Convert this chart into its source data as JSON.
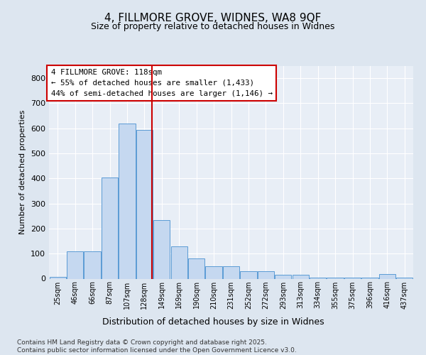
{
  "title_line1": "4, FILLMORE GROVE, WIDNES, WA8 9QF",
  "title_line2": "Size of property relative to detached houses in Widnes",
  "xlabel": "Distribution of detached houses by size in Widnes",
  "ylabel": "Number of detached properties",
  "categories": [
    "25sqm",
    "46sqm",
    "66sqm",
    "87sqm",
    "107sqm",
    "128sqm",
    "149sqm",
    "169sqm",
    "190sqm",
    "210sqm",
    "231sqm",
    "252sqm",
    "272sqm",
    "293sqm",
    "313sqm",
    "334sqm",
    "355sqm",
    "375sqm",
    "396sqm",
    "416sqm",
    "437sqm"
  ],
  "values": [
    8,
    108,
    108,
    403,
    620,
    595,
    233,
    130,
    80,
    50,
    50,
    30,
    30,
    15,
    15,
    5,
    5,
    3,
    3,
    18,
    3
  ],
  "bar_color": "#c5d8f0",
  "bar_edge_color": "#5b9bd5",
  "vline_x": 5.45,
  "vline_color": "#cc0000",
  "annotation_text": "4 FILLMORE GROVE: 118sqm\n← 55% of detached houses are smaller (1,433)\n44% of semi-detached houses are larger (1,146) →",
  "annotation_box_color": "#ffffff",
  "annotation_box_edge": "#cc0000",
  "ylim": [
    0,
    850
  ],
  "yticks": [
    0,
    100,
    200,
    300,
    400,
    500,
    600,
    700,
    800
  ],
  "footer_text": "Contains HM Land Registry data © Crown copyright and database right 2025.\nContains public sector information licensed under the Open Government Licence v3.0.",
  "bg_color": "#dde6f0",
  "plot_bg_color": "#e8eef6"
}
